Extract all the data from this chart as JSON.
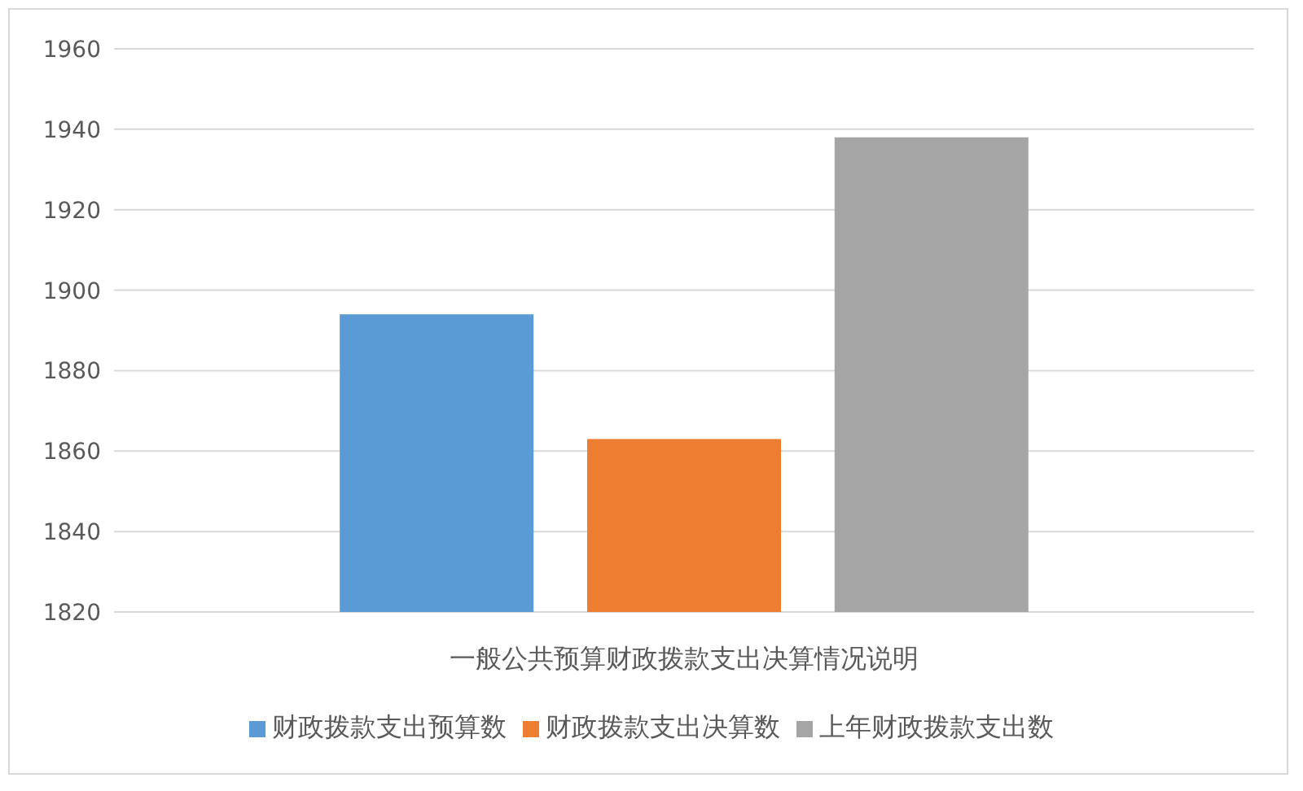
{
  "chart_data": {
    "type": "bar",
    "categories": [
      "一般公共预算财政拨款支出决算情况说明"
    ],
    "series": [
      {
        "name": "财政拨款支出预算数",
        "color": "#5b9bd5",
        "values": [
          1894
        ]
      },
      {
        "name": "财政拨款支出决算数",
        "color": "#ed7d31",
        "values": [
          1863
        ]
      },
      {
        "name": "上年财政拨款支出数",
        "color": "#a5a5a5",
        "values": [
          1938
        ]
      }
    ],
    "ylim": [
      1820,
      1960
    ],
    "yticks": [
      1820,
      1840,
      1860,
      1880,
      1900,
      1920,
      1940,
      1960
    ],
    "grid": "y",
    "legend": "bottom"
  }
}
